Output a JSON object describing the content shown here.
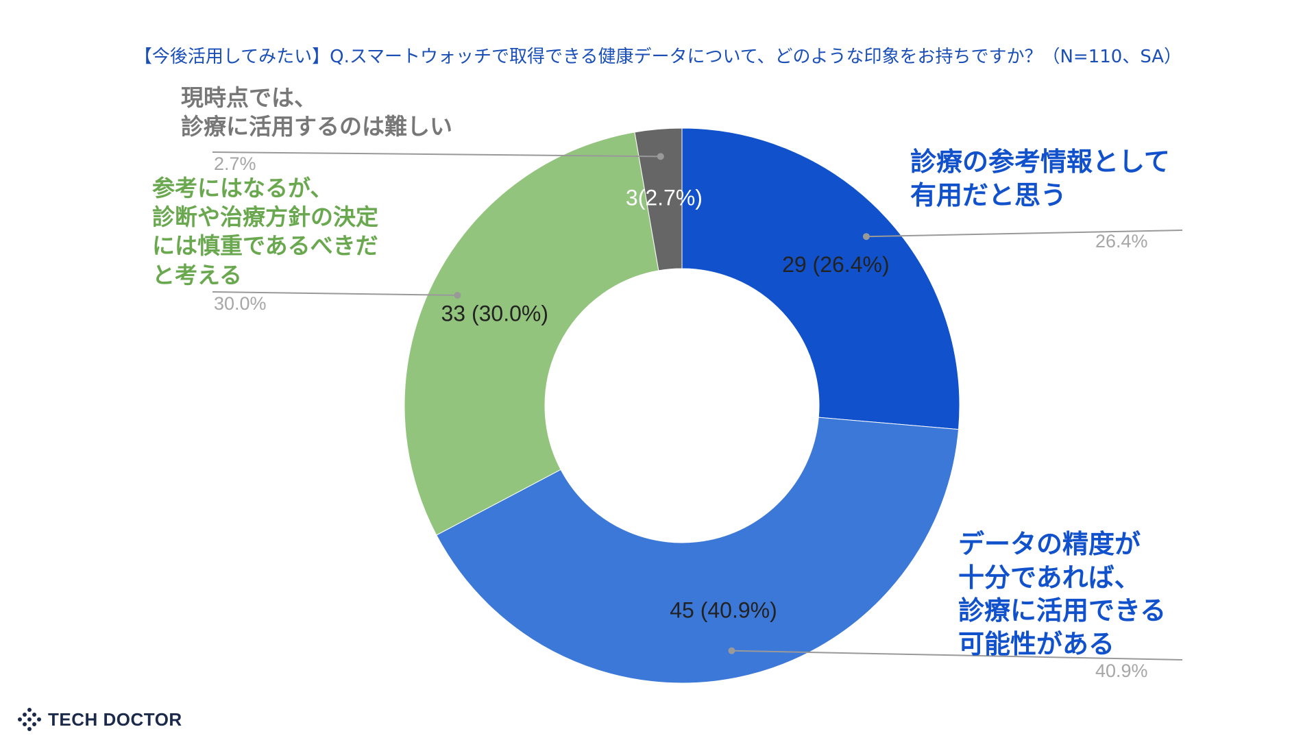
{
  "page": {
    "title": "【今後活用してみたい】Q.スマートウォッチで取得できる健康データについて、どのような印象をお持ちですか？（N=110、SA）",
    "brand": "TECH DOCTOR"
  },
  "chart_data": {
    "type": "pie",
    "variant": "donut",
    "title": "【今後活用してみたい】Q.スマートウォッチで取得できる健康データについて、どのような印象をお持ちですか？（N=110、SA）",
    "n": 110,
    "slices": [
      {
        "label_lines": [
          "診療の参考情報として",
          "有用だと思う"
        ],
        "value": 29,
        "percent": 26.4,
        "percent_label": "26.4%",
        "data_label": "29 (26.4%)",
        "color": "#1152cc",
        "label_color": "#1152cc"
      },
      {
        "label_lines": [
          "データの精度が",
          "十分であれば、",
          "診療に活用できる",
          "可能性がある"
        ],
        "value": 45,
        "percent": 40.9,
        "percent_label": "40.9%",
        "data_label": "45 (40.9%)",
        "color": "#3c78d8",
        "label_color": "#1152cc"
      },
      {
        "label_lines": [
          "参考にはなるが、",
          "診断や治療方針の決定",
          "には慎重であるべきだ",
          "と考える"
        ],
        "value": 33,
        "percent": 30.0,
        "percent_label": "30.0%",
        "data_label": "33 (30.0%)",
        "color": "#93c47d",
        "label_color": "#6aa84f"
      },
      {
        "label_lines": [
          "現時点では、",
          "診療に活用するのは難しい"
        ],
        "value": 3,
        "percent": 2.7,
        "percent_label": "2.7%",
        "data_label": "3(2.7%)",
        "color": "#666666",
        "label_color": "#777777"
      }
    ]
  }
}
